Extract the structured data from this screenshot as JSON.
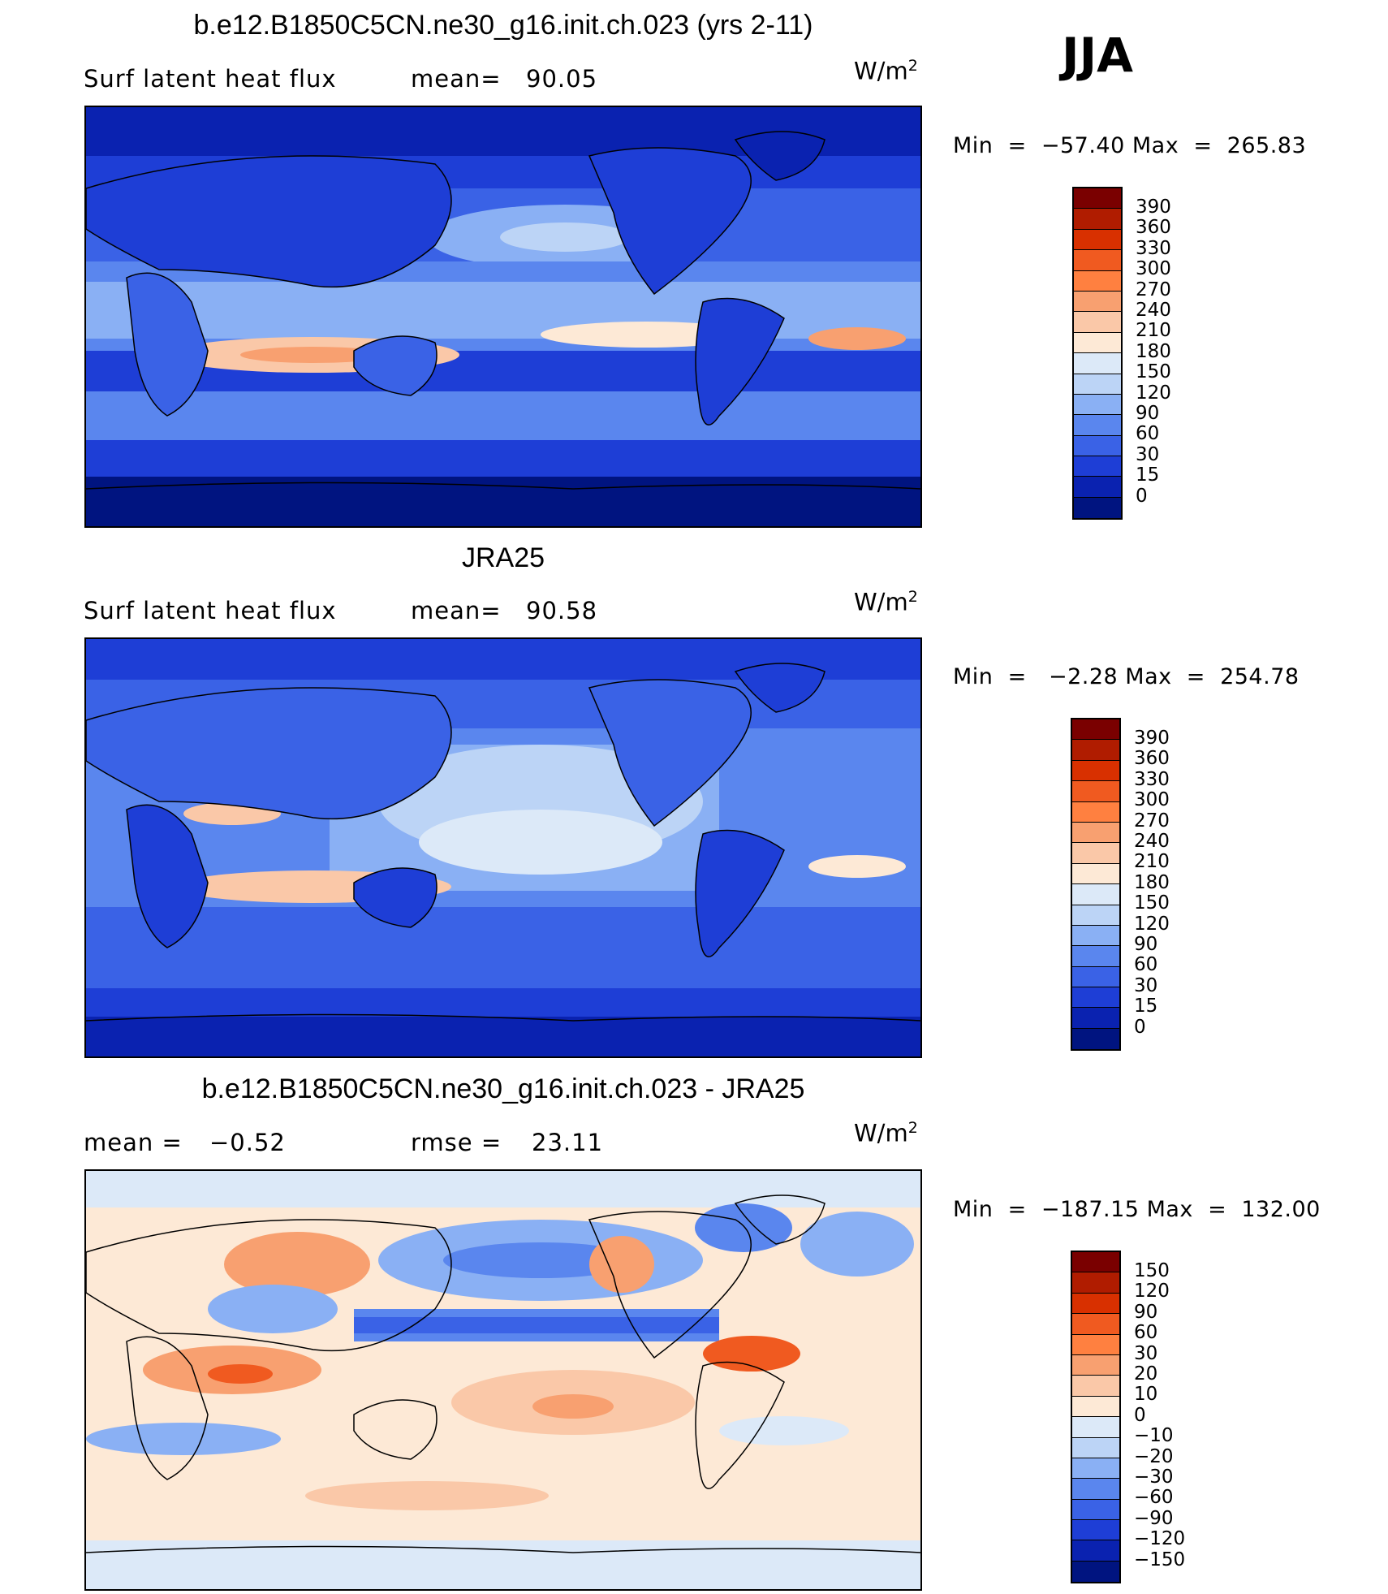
{
  "season": "JJA",
  "panels": [
    {
      "title": "b.e12.B1850C5CN.ne30_g16.init.ch.023 (yrs 2-11)",
      "left_label": "Surf  latent  heat  flux",
      "stat_label": "mean=",
      "stat_value": "90.05",
      "units_base": "W/m",
      "units_exp": "2",
      "min_label": "Min  =  ",
      "min_value": "−57.40",
      "max_label": "Max  =  ",
      "max_value": "265.83",
      "colorbar_labels": [
        "390",
        "360",
        "330",
        "300",
        "270",
        "240",
        "210",
        "180",
        "150",
        "120",
        "90",
        "60",
        "30",
        "15",
        "0"
      ]
    },
    {
      "title": "JRA25",
      "left_label": "Surf  latent  heat  flux",
      "stat_label": "mean=",
      "stat_value": "90.58",
      "units_base": "W/m",
      "units_exp": "2",
      "min_label": "Min  =   ",
      "min_value": "−2.28",
      "max_label": "Max  =  ",
      "max_value": "254.78",
      "colorbar_labels": [
        "390",
        "360",
        "330",
        "300",
        "270",
        "240",
        "210",
        "180",
        "150",
        "120",
        "90",
        "60",
        "30",
        "15",
        "0"
      ]
    },
    {
      "title": "b.e12.B1850C5CN.ne30_g16.init.ch.023 - JRA25",
      "left_label": "mean  =",
      "left_value": "−0.52",
      "stat_label": "rmse  =",
      "stat_value": "23.11",
      "units_base": "W/m",
      "units_exp": "2",
      "min_label": "Min  =  ",
      "min_value": "−187.15",
      "max_label": "Max  =  ",
      "max_value": "132.00",
      "colorbar_labels": [
        "150",
        "120",
        "90",
        "60",
        "30",
        "20",
        "10",
        "0",
        "−10",
        "−20",
        "−30",
        "−60",
        "−90",
        "−120",
        "−150"
      ]
    }
  ],
  "colors": {
    "abs_scale": [
      "#7a0000",
      "#b01c00",
      "#d83000",
      "#f05a20",
      "#ff8040",
      "#f8a070",
      "#fac8a8",
      "#fde9d6",
      "#dce9f8",
      "#bcd4f6",
      "#8ab0f4",
      "#5a86ee",
      "#3a62e6",
      "#1e3ed6",
      "#0a22b0",
      "#001480"
    ],
    "diff_scale": [
      "#7a0000",
      "#b01c00",
      "#d83000",
      "#f05a20",
      "#ff8040",
      "#f8a070",
      "#fac8a8",
      "#fde9d6",
      "#dce9f8",
      "#bcd4f6",
      "#8ab0f4",
      "#5a86ee",
      "#3a62e6",
      "#1e3ed6",
      "#0a22b0",
      "#001480"
    ],
    "land_outline": "#000000"
  }
}
